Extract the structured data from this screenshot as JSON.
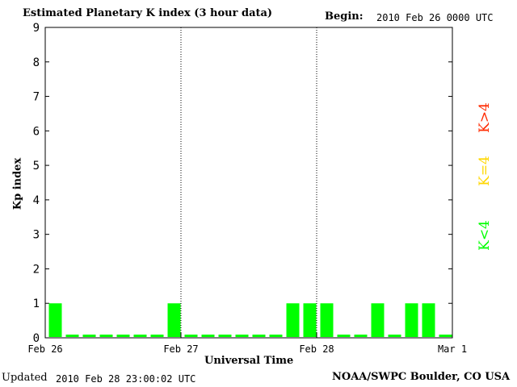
{
  "header": {
    "title": "Estimated Planetary K index (3 hour data)",
    "begin_label": "Begin:",
    "begin_value": "2010 Feb 26 0000 UTC"
  },
  "footer": {
    "updated_label": "Updated",
    "updated_value": "2010 Feb 28 23:00:02 UTC",
    "credit": "NOAA/SWPC Boulder, CO USA"
  },
  "legend": {
    "items": [
      {
        "label": "K<4",
        "color": "#00ff00"
      },
      {
        "label": "K=4",
        "color": "#ffd700"
      },
      {
        "label": "K>4",
        "color": "#ff2a00"
      }
    ]
  },
  "chart_data": {
    "type": "bar",
    "title": "Estimated Planetary K index (3 hour data)",
    "xlabel": "Universal Time",
    "ylabel": "Kp index",
    "ylim": [
      0,
      9
    ],
    "yticks": [
      "0",
      "1",
      "2",
      "3",
      "4",
      "5",
      "6",
      "7",
      "8",
      "9"
    ],
    "xticks": [
      "Feb 26",
      "Feb 27",
      "Feb 28",
      "Mar 1"
    ],
    "bar_color": "#00ff00",
    "values": [
      1,
      0,
      0,
      0,
      0,
      0,
      0,
      1,
      0,
      0,
      0,
      0,
      0,
      0,
      1,
      1,
      1,
      0,
      0,
      1,
      0,
      1,
      1,
      0
    ]
  }
}
